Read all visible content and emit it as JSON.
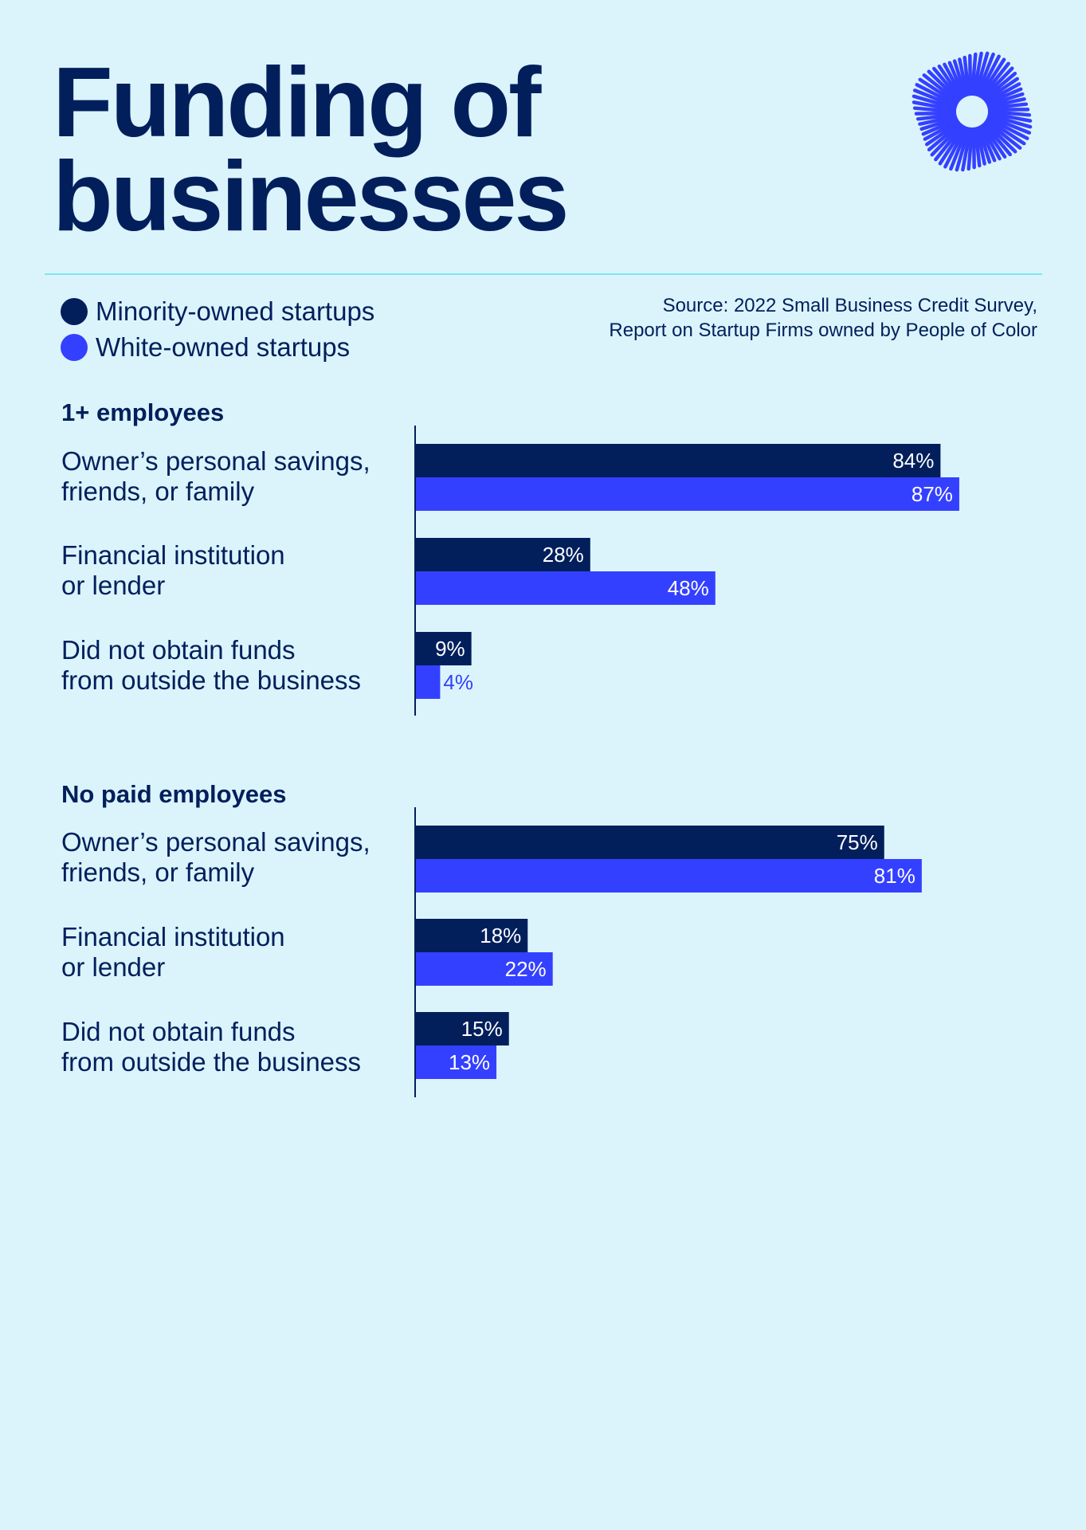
{
  "title": {
    "line1": "Funding of",
    "line2": "businesses"
  },
  "legend": [
    {
      "label": "Minority-owned startups",
      "color": "#021f5c"
    },
    {
      "label": "White-owned startups",
      "color": "#3440ff"
    }
  ],
  "source": {
    "line1": "Source: 2022 Small Business Credit Survey,",
    "line2": "Report on Startup Firms owned by People of Color"
  },
  "logo": {
    "icon": "sunburst-logo-icon"
  },
  "colors": {
    "background": "#dbf4fc",
    "minority": "#021f5c",
    "white": "#3440ff",
    "rule": "#7fe8ec"
  },
  "chart_data": [
    {
      "type": "bar",
      "orientation": "horizontal",
      "title": "1+ employees",
      "categories": [
        [
          "Owner’s personal savings,",
          "friends, or family"
        ],
        [
          "Financial institution",
          "or lender"
        ],
        [
          "Did not obtain funds",
          "from outside the business"
        ]
      ],
      "series": [
        {
          "name": "Minority-owned startups",
          "values": [
            84,
            28,
            9
          ],
          "labels": [
            "84%",
            "28%",
            "9%"
          ]
        },
        {
          "name": "White-owned startups",
          "values": [
            87,
            48,
            4
          ],
          "labels": [
            "87%",
            "48%",
            "4%"
          ]
        }
      ],
      "xlim": [
        0,
        100
      ]
    },
    {
      "type": "bar",
      "orientation": "horizontal",
      "title": "No paid employees",
      "categories": [
        [
          "Owner’s personal savings,",
          "friends, or family"
        ],
        [
          "Financial institution",
          "or lender"
        ],
        [
          "Did not obtain funds",
          "from outside the business"
        ]
      ],
      "series": [
        {
          "name": "Minority-owned startups",
          "values": [
            75,
            18,
            15
          ],
          "labels": [
            "75%",
            "18%",
            "15%"
          ]
        },
        {
          "name": "White-owned startups",
          "values": [
            81,
            22,
            13
          ],
          "labels": [
            "81%",
            "22%",
            "13%"
          ]
        }
      ],
      "xlim": [
        0,
        100
      ]
    }
  ]
}
